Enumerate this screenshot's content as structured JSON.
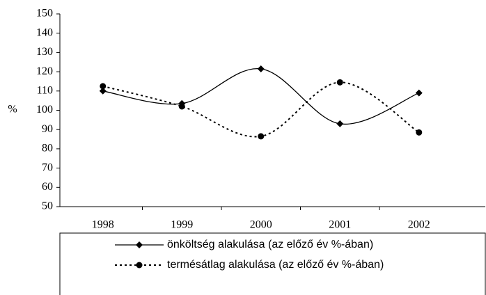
{
  "chart_data": {
    "type": "line",
    "y_label": "%",
    "categories": [
      "1998",
      "1999",
      "2000",
      "2001",
      "2002"
    ],
    "series": [
      {
        "name": "önköltség alakulása (az előző év %-ában)",
        "color": "#000000",
        "marker": "diamond",
        "dash": false,
        "values": [
          110,
          103.5,
          121.5,
          93,
          109
        ]
      },
      {
        "name": "termésátlag alakulása (az előző év %-ában)",
        "color": "#000000",
        "marker": "circle",
        "dash": true,
        "values": [
          112.5,
          102,
          86.5,
          114.5,
          88.5
        ]
      }
    ],
    "ylim": [
      50,
      150
    ],
    "yticks": [
      50,
      60,
      70,
      80,
      90,
      100,
      110,
      120,
      130,
      140,
      150
    ],
    "grid": false,
    "smooth": true,
    "legend": "bottom"
  }
}
